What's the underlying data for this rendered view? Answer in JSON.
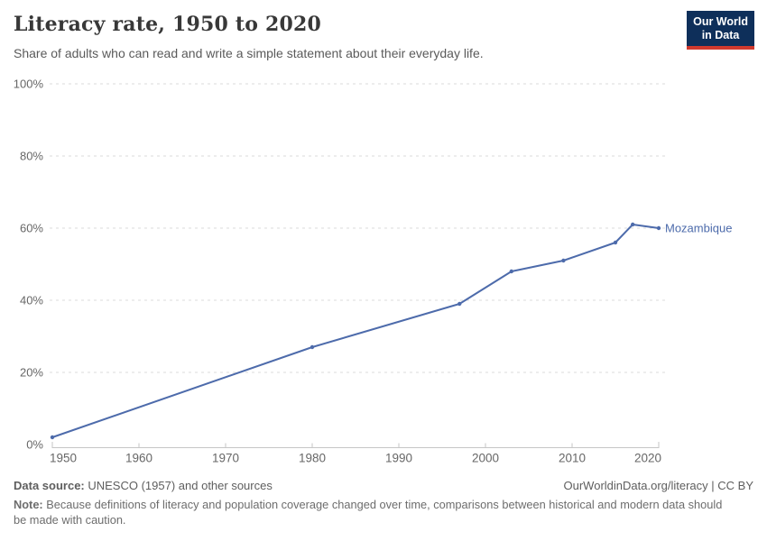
{
  "header": {
    "title": "Literacy rate, 1950 to 2020",
    "subtitle": "Share of adults who can read and write a simple statement about their everyday life.",
    "logo": {
      "line1": "Our World",
      "line2": "in Data",
      "bg_color": "#0e2f5a",
      "accent_color": "#d0392e",
      "text_color": "#ffffff"
    }
  },
  "chart_data": {
    "type": "line",
    "title": "Literacy rate, 1950 to 2020",
    "xlabel": "",
    "ylabel": "",
    "xlim": [
      1950,
      2020
    ],
    "ylim": [
      0,
      100
    ],
    "x_ticks": [
      1950,
      1960,
      1970,
      1980,
      1990,
      2000,
      2010,
      2020
    ],
    "y_ticks": [
      0,
      20,
      40,
      60,
      80,
      100
    ],
    "y_tick_suffix": "%",
    "grid": "horizontal-dashed",
    "legend_position": "line-end-label",
    "series": [
      {
        "name": "Mozambique",
        "color": "#4d6bab",
        "x": [
          1950,
          1980,
          1997,
          2003,
          2009,
          2015,
          2017,
          2020
        ],
        "values": [
          2,
          27,
          39,
          48,
          51,
          56,
          61,
          60
        ]
      }
    ]
  },
  "chart_colors": {
    "gridline": "#dbdbdb",
    "axis_line": "#c6c6c6",
    "tick_label": "#676767"
  },
  "footer": {
    "source_label": "Data source:",
    "source_text": " UNESCO (1957) and other sources",
    "attribution": "OurWorldinData.org/literacy | CC BY",
    "note_label": "Note:",
    "note_text": " Because definitions of literacy and population coverage changed over time, comparisons between historical and modern data should be made with caution."
  }
}
